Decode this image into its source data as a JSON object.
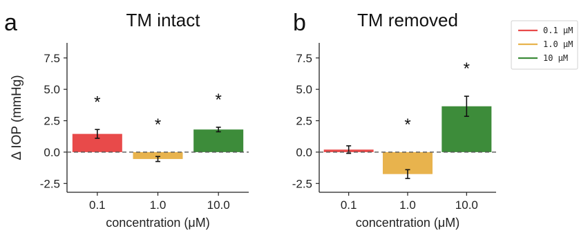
{
  "chart_data": [
    {
      "panel_label": "a",
      "type": "bar",
      "title": "TM intact",
      "xlabel": "concentration (μM)",
      "ylabel": "Δ IOP (mmHg)",
      "categories": [
        "0.1",
        "1.0",
        "10.0"
      ],
      "values": [
        1.45,
        -0.55,
        1.8
      ],
      "errors": [
        0.35,
        0.2,
        0.18
      ],
      "significance": [
        "*",
        "*",
        "*"
      ],
      "colors": [
        "#E84A4A",
        "#E8B34D",
        "#3D8C3A"
      ],
      "yticks": [
        "7.5",
        "5.0",
        "2.5",
        "0.0",
        "-2.5"
      ],
      "ytick_values": [
        7.5,
        5.0,
        2.5,
        0.0,
        -2.5
      ],
      "ylim": [
        -3.2,
        8.7
      ],
      "grid": false,
      "zero_line": true
    },
    {
      "panel_label": "b",
      "type": "bar",
      "title": "TM removed",
      "xlabel": "concentration (μM)",
      "ylabel": "",
      "categories": [
        "0.1",
        "1.0",
        "10.0"
      ],
      "values": [
        0.2,
        -1.75,
        3.65
      ],
      "errors": [
        0.3,
        0.35,
        0.8
      ],
      "significance": [
        "",
        "*",
        "*"
      ],
      "colors": [
        "#E84A4A",
        "#E8B34D",
        "#3D8C3A"
      ],
      "yticks": [
        "7.5",
        "5.0",
        "2.5",
        "0.0",
        "-2.5"
      ],
      "ytick_values": [
        7.5,
        5.0,
        2.5,
        0.0,
        -2.5
      ],
      "ylim": [
        -3.2,
        8.7
      ],
      "grid": false,
      "zero_line": true
    }
  ],
  "legend": {
    "placement": "top-right",
    "entries": [
      {
        "label": "0.1 μM",
        "color": "#E84A4A"
      },
      {
        "label": "1.0 μM",
        "color": "#E8B34D"
      },
      {
        "label": "10  μM",
        "color": "#3D8C3A"
      }
    ]
  }
}
